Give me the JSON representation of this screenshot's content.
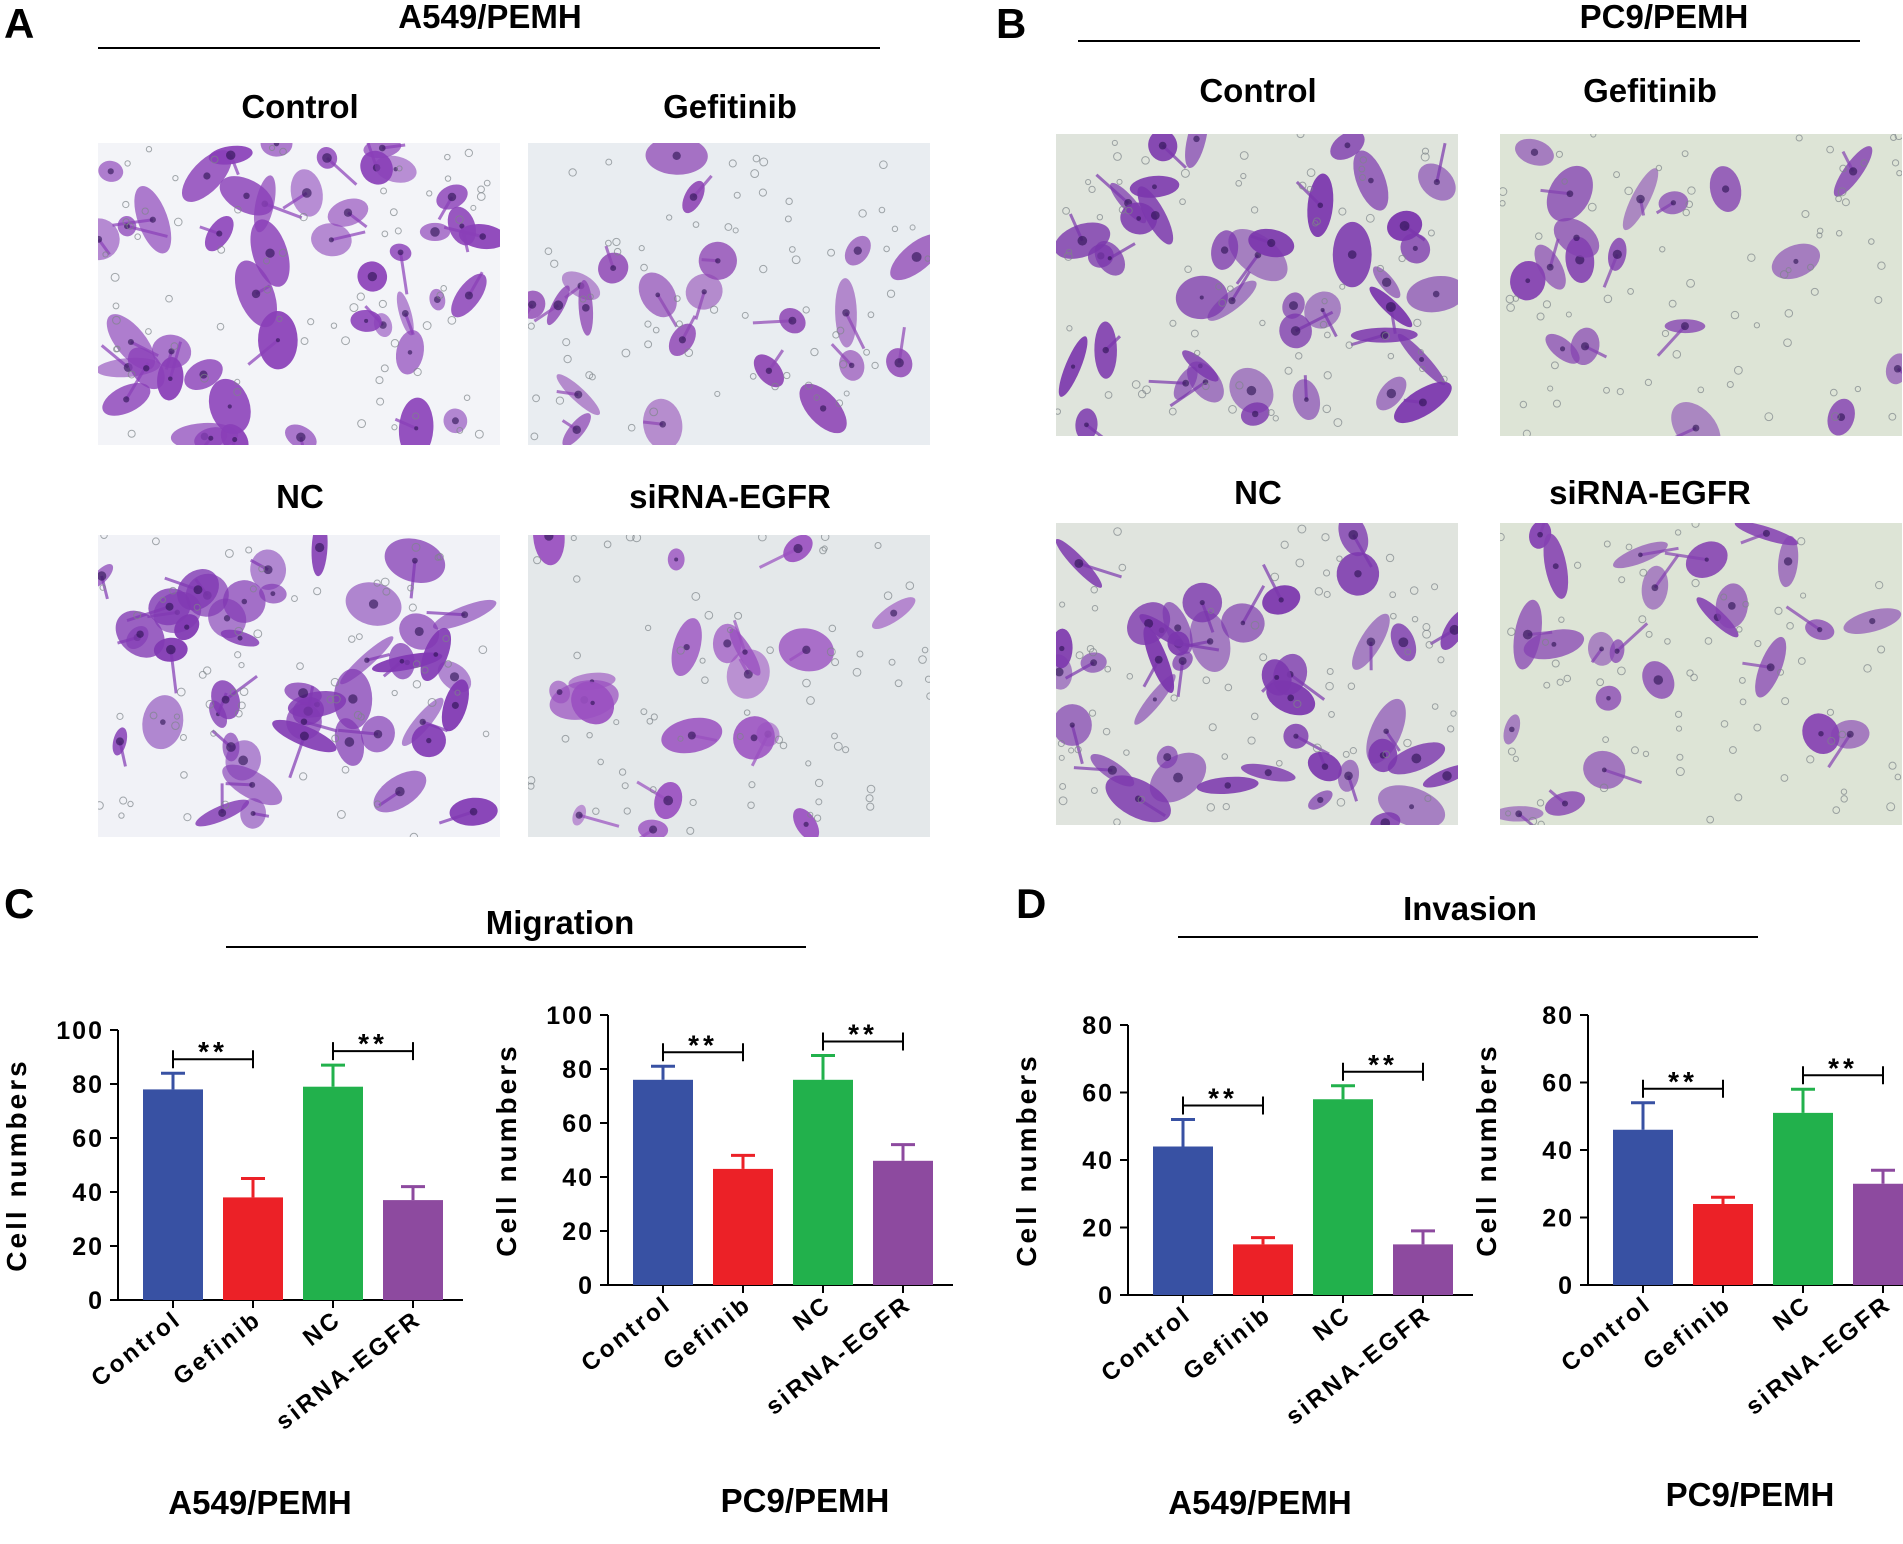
{
  "panels": {
    "A": {
      "letter": "A",
      "title": "A549/PEMH",
      "images": [
        {
          "label": "Control",
          "bg": "#f3f4f8",
          "cell": "#8a3fb8",
          "dense": 46
        },
        {
          "label": "Gefitinib",
          "bg": "#e9edf1",
          "cell": "#8e45b4",
          "dense": 22
        },
        {
          "label": "NC",
          "bg": "#f1f2f7",
          "cell": "#8138b3",
          "dense": 46
        },
        {
          "label": "siRNA-EGFR",
          "bg": "#e4e8ea",
          "cell": "#9a4fc0",
          "dense": 20
        }
      ]
    },
    "B": {
      "letter": "B",
      "title": "PC9/PEMH",
      "images": [
        {
          "label": "Control",
          "bg": "#dfe4dc",
          "cell": "#7b36ad",
          "dense": 40
        },
        {
          "label": "Gefitinib",
          "bg": "#dde4d6",
          "cell": "#8441b1",
          "dense": 18
        },
        {
          "label": "NC",
          "bg": "#e0e4de",
          "cell": "#7c37ae",
          "dense": 40
        },
        {
          "label": "siRNA-EGFR",
          "bg": "#dde4d6",
          "cell": "#8541b2",
          "dense": 24
        }
      ]
    },
    "C": {
      "letter": "C",
      "title": "Migration"
    },
    "D": {
      "letter": "D",
      "title": "Invasion"
    }
  },
  "colors": {
    "control": "#3851a3",
    "gefinib": "#ec2127",
    "nc": "#22b14c",
    "sirna": "#8d4a9f"
  },
  "chart_data": [
    {
      "type": "bar",
      "group": "Migration",
      "subtitle": "A549/PEMH",
      "ylabel": "Cell numbers",
      "ylim": [
        0,
        100
      ],
      "yticks": [
        0,
        20,
        40,
        60,
        80,
        100
      ],
      "categories": [
        "Control",
        "Gefinib",
        "NC",
        "siRNA-EGFR"
      ],
      "values": [
        78,
        38,
        79,
        37
      ],
      "errors": [
        6,
        7,
        8,
        5
      ],
      "significance": [
        {
          "from": 0,
          "to": 1,
          "label": "**"
        },
        {
          "from": 2,
          "to": 3,
          "label": "**"
        }
      ]
    },
    {
      "type": "bar",
      "group": "Migration",
      "subtitle": "PC9/PEMH",
      "ylabel": "Cell numbers",
      "ylim": [
        0,
        100
      ],
      "yticks": [
        0,
        20,
        40,
        60,
        80,
        100
      ],
      "categories": [
        "Control",
        "Gefinib",
        "NC",
        "siRNA-EGFR"
      ],
      "values": [
        76,
        43,
        76,
        46
      ],
      "errors": [
        5,
        5,
        9,
        6
      ],
      "significance": [
        {
          "from": 0,
          "to": 1,
          "label": "**"
        },
        {
          "from": 2,
          "to": 3,
          "label": "**"
        }
      ]
    },
    {
      "type": "bar",
      "group": "Invasion",
      "subtitle": "A549/PEMH",
      "ylabel": "Cell numbers",
      "ylim": [
        0,
        80
      ],
      "yticks": [
        0,
        20,
        40,
        60,
        80
      ],
      "categories": [
        "Control",
        "Gefinib",
        "NC",
        "siRNA-EGFR"
      ],
      "values": [
        44,
        15,
        58,
        15
      ],
      "errors": [
        8,
        2,
        4,
        4
      ],
      "significance": [
        {
          "from": 0,
          "to": 1,
          "label": "**"
        },
        {
          "from": 2,
          "to": 3,
          "label": "**"
        }
      ]
    },
    {
      "type": "bar",
      "group": "Invasion",
      "subtitle": "PC9/PEMH",
      "ylabel": "Cell numbers",
      "ylim": [
        0,
        80
      ],
      "yticks": [
        0,
        20,
        40,
        60,
        80
      ],
      "categories": [
        "Control",
        "Gefinib",
        "NC",
        "siRNA-EGFR"
      ],
      "values": [
        46,
        24,
        51,
        30
      ],
      "errors": [
        8,
        2,
        7,
        4
      ],
      "significance": [
        {
          "from": 0,
          "to": 1,
          "label": "**"
        },
        {
          "from": 2,
          "to": 3,
          "label": "**"
        }
      ]
    }
  ]
}
